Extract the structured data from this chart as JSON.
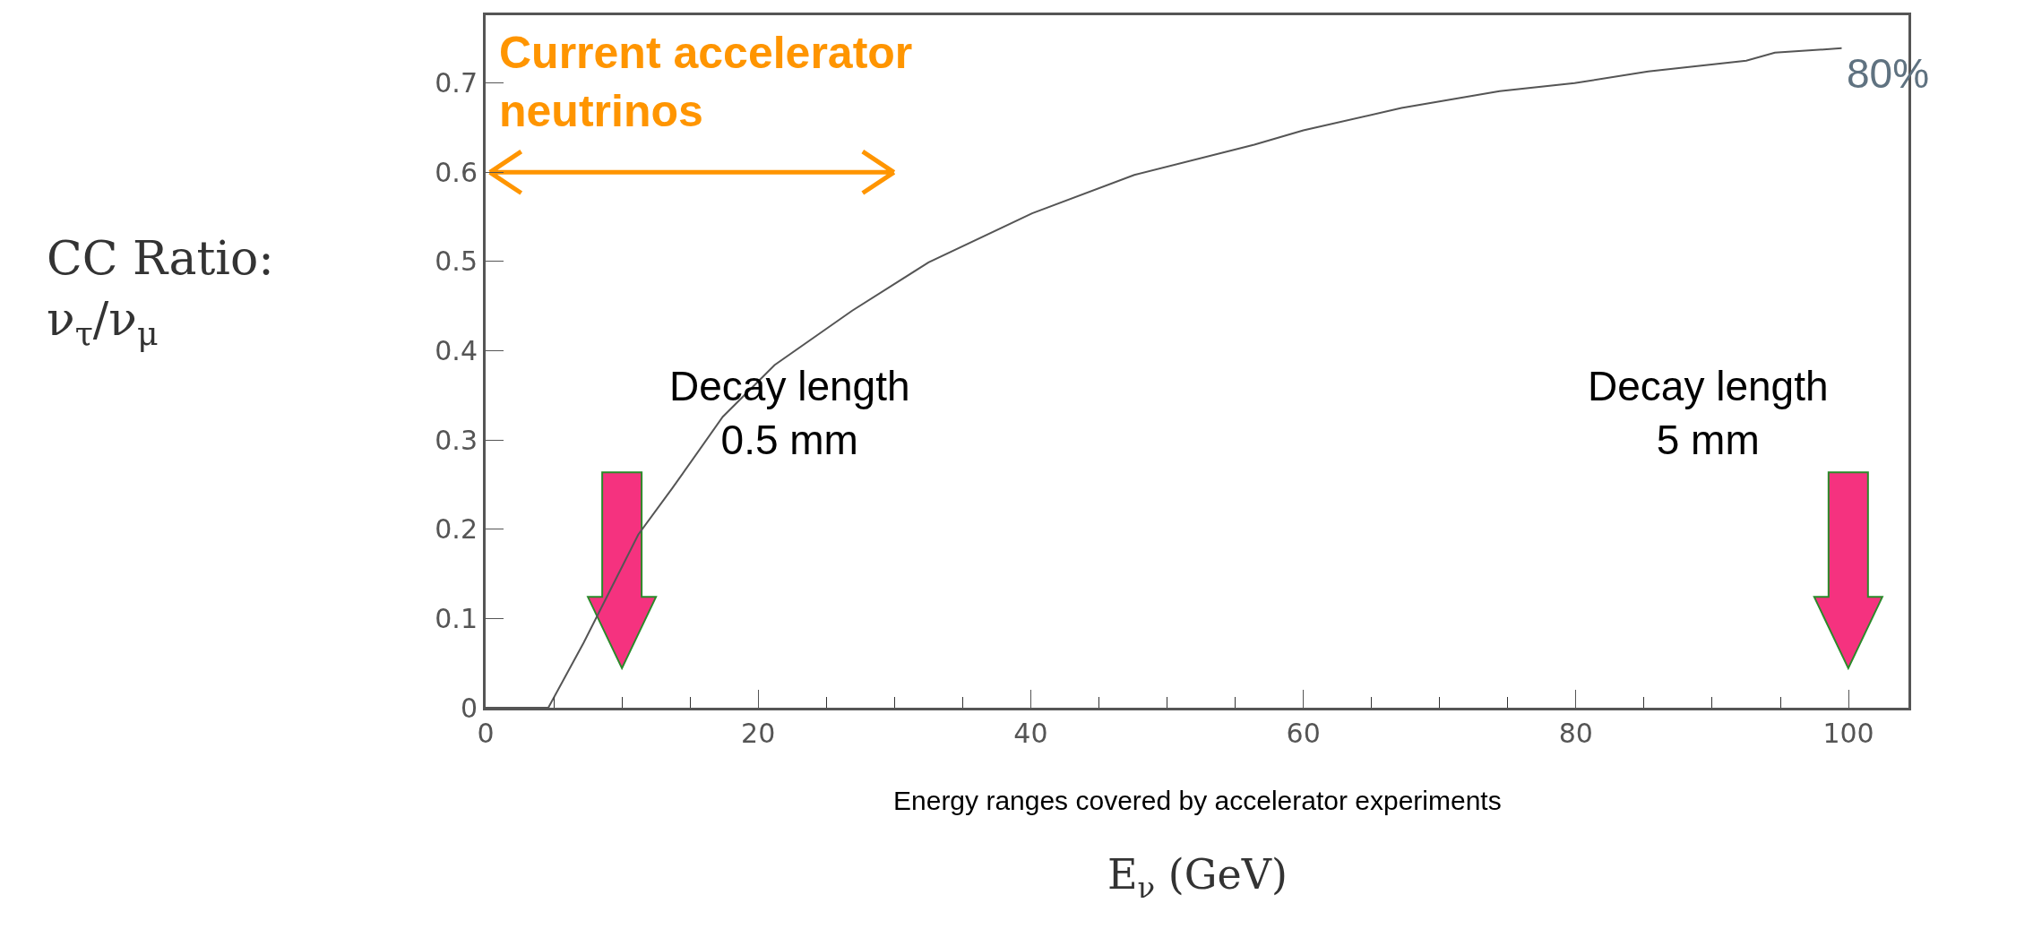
{
  "chart_data": {
    "type": "line",
    "xlabel": "E$_{ν}$ (GeV)",
    "ylabel": "CC Ratio:\nν$_{τ}$/ν$_{μ}$",
    "x": [
      0,
      4.6,
      7.2,
      11.2,
      13.7,
      17.4,
      21.2,
      26.9,
      32.5,
      40.1,
      47.6,
      56.4,
      60.0,
      67.2,
      74.4,
      79.9,
      85.3,
      92.5,
      94.6,
      99.5
    ],
    "series": [
      {
        "color": "#555555",
        "values": [
          0,
          0,
          0.073,
          0.194,
          0.246,
          0.326,
          0.384,
          0.445,
          0.499,
          0.554,
          0.597,
          0.631,
          0.647,
          0.672,
          0.691,
          0.7,
          0.713,
          0.725,
          0.734,
          0.739
        ]
      }
    ],
    "xlim": [
      0,
      104.4
    ],
    "ylim": [
      0,
      0.776
    ],
    "xticks": [
      0,
      {
        "value": 5,
        "label": null
      },
      {
        "value": 10,
        "label": null
      },
      {
        "value": 15,
        "label": null
      },
      20,
      {
        "value": 25,
        "label": null
      },
      {
        "value": 30,
        "label": null
      },
      {
        "value": 35,
        "label": null
      },
      40,
      {
        "value": 45,
        "label": null
      },
      {
        "value": 50,
        "label": null
      },
      {
        "value": 55,
        "label": null
      },
      60,
      {
        "value": 65,
        "label": null
      },
      {
        "value": 70,
        "label": null
      },
      {
        "value": 75,
        "label": null
      },
      80,
      {
        "value": 85,
        "label": null
      },
      {
        "value": 90,
        "label": null
      },
      {
        "value": 95,
        "label": null
      },
      100
    ],
    "yticks": [
      0,
      0.1,
      0.2,
      0.3,
      0.4,
      0.5,
      0.6,
      0.7
    ],
    "annotations": [
      "Current accelerator\nneutrinos",
      "Decay length\n0.5 mm",
      "Decay length\n5 mm",
      "80%",
      "Energy ranges covered by accelerator experiments"
    ],
    "grid": false,
    "legend": false,
    "marker": "none",
    "line_style": "solid"
  }
}
